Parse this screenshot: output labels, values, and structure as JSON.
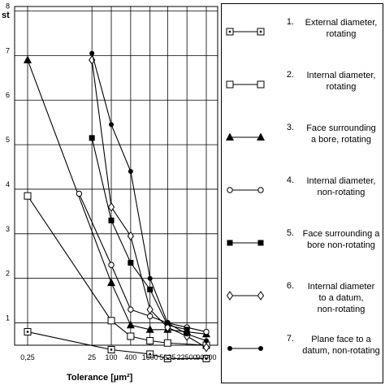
{
  "chart_data": {
    "type": "line",
    "ylabel": "st",
    "xlabel": "Tolerance [µm²]",
    "categories": [
      "0,25",
      "25",
      "100",
      "400",
      "1600",
      "5625",
      "22500",
      "90000"
    ],
    "x_numeric": [
      0.25,
      25,
      100,
      400,
      1600,
      5625,
      22500,
      90000
    ],
    "y_ticks": [
      1,
      2,
      3,
      4,
      5,
      6,
      7,
      8
    ],
    "ylim": [
      0.5,
      8.1
    ],
    "grid": true,
    "legend_position": "right",
    "series": [
      {
        "number": "1.",
        "name": "External diameter, rotating",
        "marker": "square-dot",
        "color": "#000000",
        "x": [
          0.25,
          100,
          1600,
          5625,
          90000
        ],
        "y": [
          0.8,
          0.4,
          0.3,
          0.2,
          0.2
        ]
      },
      {
        "number": "2.",
        "name": "Internal diameter, rotating",
        "marker": "open-square",
        "color": "#000000",
        "x": [
          0.25,
          100,
          400,
          1600,
          5625,
          90000
        ],
        "y": [
          3.85,
          1.05,
          0.7,
          0.6,
          0.55,
          0.5
        ]
      },
      {
        "number": "3.",
        "name": "Face surrounding a bore, rotating",
        "marker": "filled-triangle",
        "color": "#000000",
        "x": [
          0.25,
          100,
          400,
          1600,
          5625,
          22500,
          90000
        ],
        "y": [
          6.9,
          1.9,
          0.95,
          0.85,
          0.85,
          0.8,
          0.75
        ]
      },
      {
        "number": "4.",
        "name": "Internal diameter, non-rotating",
        "marker": "open-circle",
        "color": "#000000",
        "x": [
          10,
          100,
          400,
          1600,
          5625,
          22500,
          90000
        ],
        "y": [
          3.9,
          2.3,
          1.3,
          1.15,
          1.0,
          0.9,
          0.8
        ]
      },
      {
        "number": "5.",
        "name": "Face surrounding a bore non-rotating",
        "marker": "filled-square",
        "color": "#000000",
        "x": [
          25,
          100,
          400,
          1600,
          5625,
          22500
        ],
        "y": [
          5.15,
          3.3,
          2.35,
          1.75,
          0.95,
          0.85
        ]
      },
      {
        "number": "6.",
        "name": "Internal diameter to a datum, non-rotating",
        "marker": "open-diamond",
        "color": "#000000",
        "x": [
          25,
          100,
          400,
          1600,
          5625,
          22500,
          90000
        ],
        "y": [
          6.9,
          3.6,
          2.95,
          1.3,
          0.9,
          0.7,
          0.45
        ]
      },
      {
        "number": "7.",
        "name": "Plane face to a datum, non-rotating",
        "marker": "filled-circle",
        "color": "#000000",
        "x": [
          25,
          100,
          400,
          1600,
          5625,
          22500,
          90000
        ],
        "y": [
          7.05,
          5.45,
          4.4,
          2.0,
          1.0,
          0.75,
          0.6
        ]
      }
    ],
    "legend": [
      {
        "number": "1.",
        "lines": [
          "External diameter,",
          "rotating"
        ]
      },
      {
        "number": "2.",
        "lines": [
          "Internal diameter,",
          "rotating"
        ]
      },
      {
        "number": "3.",
        "lines": [
          "Face surrounding",
          "a bore, rotating"
        ]
      },
      {
        "number": "4.",
        "lines": [
          "Internal diameter,",
          "non-rotating"
        ]
      },
      {
        "number": "5.",
        "lines": [
          "Face surrounding a",
          "bore non-rotating"
        ]
      },
      {
        "number": "6.",
        "lines": [
          "Internal diameter",
          "to a datum,",
          "non-rotating"
        ]
      },
      {
        "number": "7.",
        "lines": [
          "Plane face to a",
          "datum, non-rotating"
        ]
      }
    ]
  }
}
